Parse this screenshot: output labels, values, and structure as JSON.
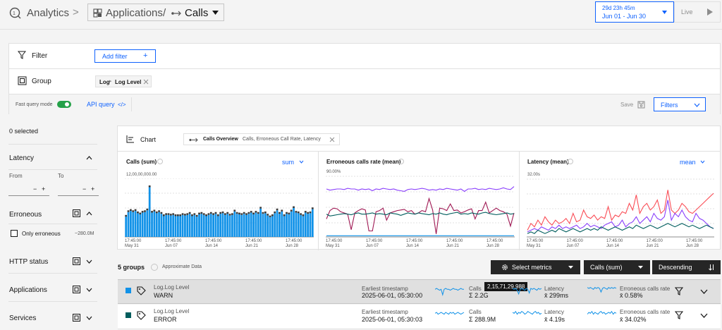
{
  "header": {
    "analytics_label": "Analytics",
    "crumb_sep": ">",
    "applications_label": "Applications",
    "slash": "/",
    "calls_label": "Calls",
    "date_duration": "29d 23h 45m",
    "date_range": "Jun 01 - Jun 30",
    "live_label": "Live"
  },
  "filter_panel": {
    "filter_label": "Filter",
    "add_filter_label": "Add filter",
    "add_filter_plus": "+",
    "group_label": "Group",
    "group_tag_part1": "Log",
    "group_tag_part2": "Log Level",
    "fast_query_label": "Fast query mode",
    "api_query_label": "API query",
    "api_query_icon": "</>",
    "save_label": "Save",
    "filters_label": "Filters"
  },
  "sidebar": {
    "selected_count": "0 selected",
    "latency_label": "Latency",
    "from_label": "From",
    "to_label": "To",
    "from_minus": "−",
    "from_plus": "+",
    "to_minus": "−",
    "to_plus": "+",
    "erroneous_label": "Erroneous",
    "only_erroneous_label": "Only erroneous",
    "only_erroneous_count": "~280.0M",
    "http_status_label": "HTTP status",
    "applications_label": "Applications",
    "services_label": "Services"
  },
  "chart_bar": {
    "chart_label": "Chart",
    "overview_title": "Calls Overview",
    "overview_sub": "Calls, Erroneous Call Rate, Latency"
  },
  "charts": {
    "calls": {
      "title": "Calls (sum)",
      "agg": "sum",
      "ymax_label": "12,00,00,000.00"
    },
    "err": {
      "title": "Erroneous calls rate (mean)",
      "ymax_label": "90.00%"
    },
    "lat": {
      "title": "Latency (mean)",
      "agg": "mean",
      "ymax_label": "32.00s"
    },
    "x_ticks": [
      {
        "time": "17:45:00",
        "date": "May 31"
      },
      {
        "time": "17:45:00",
        "date": "Jun 07"
      },
      {
        "time": "17:45:00",
        "date": "Jun 14"
      },
      {
        "time": "17:45:00",
        "date": "Jun 21"
      },
      {
        "time": "17:45:00",
        "date": "Jun 28"
      }
    ]
  },
  "chart_data": [
    {
      "type": "bar",
      "title": "Calls (sum)",
      "ylim": [
        0,
        120000000
      ],
      "ymax_label": "12,00,00,000.00",
      "x_ticks": [
        "17:45:00 May 31",
        "17:45:00 Jun 07",
        "17:45:00 Jun 14",
        "17:45:00 Jun 21",
        "17:45:00 Jun 28"
      ],
      "series": [
        {
          "color": "#1192e8",
          "values": [
            35,
            43,
            45,
            43,
            45,
            41,
            39,
            42,
            43,
            46,
            86,
            42,
            44,
            41,
            43,
            40,
            36,
            38,
            38,
            37,
            38,
            36,
            36,
            36,
            38,
            37,
            38,
            40,
            36,
            38,
            35,
            39,
            40,
            38,
            36,
            38,
            40,
            38,
            40,
            36,
            40,
            41,
            38,
            40,
            37,
            38,
            44,
            40,
            39,
            38,
            40,
            38,
            40,
            42,
            39,
            42,
            40,
            49,
            40,
            41,
            37,
            34,
            36,
            41,
            46,
            40,
            44,
            36,
            40,
            39,
            44,
            50,
            42,
            41,
            38,
            36,
            42,
            40,
            41,
            48
          ]
        },
        {
          "color": "#002d9c",
          "values": [
            6,
            6,
            6,
            6,
            6,
            6,
            6,
            6,
            6,
            6,
            6,
            6,
            6,
            6,
            6,
            6,
            6,
            6,
            6,
            6,
            6,
            6,
            6,
            6,
            6,
            6,
            6,
            6,
            6,
            6,
            6,
            6,
            6,
            6,
            6,
            6,
            6,
            6,
            6,
            6,
            6,
            6,
            6,
            6,
            6,
            6,
            6,
            6,
            6,
            6,
            6,
            6,
            6,
            6,
            6,
            6,
            6,
            6,
            6,
            6,
            6,
            6,
            6,
            6,
            6,
            6,
            6,
            6,
            6,
            6,
            6,
            6,
            6,
            6,
            6,
            6,
            6,
            6,
            6,
            6
          ]
        }
      ]
    },
    {
      "type": "line",
      "title": "Erroneous calls rate (mean)",
      "ylim": [
        0,
        100
      ],
      "ymax_label": "90.00%",
      "series": [
        {
          "color": "#8a3ffc",
          "values": [
            80,
            78,
            79,
            80,
            80,
            79,
            81,
            80,
            80,
            78,
            80,
            79,
            80,
            77,
            80,
            79,
            81,
            80,
            79,
            80,
            78,
            77,
            76,
            79,
            80,
            79,
            80,
            81,
            80,
            78,
            79,
            78,
            80,
            79,
            81,
            80,
            79,
            78,
            80,
            76,
            80,
            80,
            81,
            79,
            80,
            79,
            81,
            80,
            79,
            80,
            82,
            80,
            79,
            84
          ]
        },
        {
          "color": "#9f1853",
          "values": [
            30,
            44,
            48,
            47,
            42,
            40,
            38,
            12,
            40,
            44,
            47,
            45,
            10,
            10,
            42,
            44,
            48,
            28,
            40,
            42,
            44,
            45,
            46,
            42,
            44,
            38,
            40,
            44,
            42,
            64,
            45,
            5,
            48,
            47,
            44,
            55,
            44,
            45,
            40,
            42,
            45,
            47,
            30,
            44,
            44,
            58,
            40,
            44,
            48,
            44,
            42,
            38,
            18,
            40
          ]
        },
        {
          "color": "#005d5d",
          "values": [
            38,
            35,
            36,
            37,
            38,
            39,
            38,
            37,
            39,
            40,
            38,
            38,
            39,
            40,
            38,
            39,
            38,
            37,
            40,
            39,
            38,
            36,
            38,
            40,
            39,
            38,
            40,
            39,
            38,
            37,
            39,
            38,
            40,
            38,
            37,
            39,
            40,
            41,
            38,
            39,
            38,
            40,
            39,
            38,
            40,
            41,
            39,
            38,
            37,
            38,
            39,
            40,
            38,
            39
          ]
        },
        {
          "color": "#1192e8",
          "values": [
            2,
            2,
            2,
            2,
            2,
            2,
            2,
            2,
            2,
            2,
            2,
            2,
            2,
            2,
            2,
            2,
            2,
            2,
            2,
            2,
            2,
            2,
            2,
            2,
            2,
            2,
            2,
            2,
            2,
            2,
            2,
            2,
            2,
            2,
            2,
            2,
            2,
            2,
            2,
            2,
            2,
            2,
            2,
            2,
            2,
            2,
            2,
            2,
            2,
            2,
            2,
            2,
            2,
            2
          ]
        }
      ]
    },
    {
      "type": "line",
      "title": "Latency (mean)",
      "ylim": [
        0,
        34
      ],
      "ymax_label": "32.00s",
      "series": [
        {
          "color": "#fa4d56",
          "values": [
            4,
            8,
            6,
            10,
            7,
            12,
            9,
            7,
            10,
            8,
            9,
            11,
            8,
            14,
            9,
            10,
            16,
            12,
            11,
            13,
            10,
            12,
            11,
            18,
            10,
            13,
            12,
            15,
            14,
            20,
            16,
            25,
            14,
            18,
            20,
            16,
            18,
            22,
            14,
            16,
            28,
            16,
            14,
            16,
            20,
            18,
            15,
            14,
            16,
            18,
            20,
            22,
            24,
            26
          ]
        },
        {
          "color": "#8a3ffc",
          "values": [
            3,
            4,
            5,
            4,
            6,
            5,
            4,
            6,
            5,
            7,
            5,
            6,
            5,
            6,
            7,
            5,
            6,
            8,
            6,
            7,
            6,
            5,
            7,
            8,
            9,
            6,
            7,
            10,
            6,
            8,
            9,
            12,
            8,
            10,
            12,
            9,
            14,
            11,
            10,
            12,
            22,
            10,
            14,
            12,
            16,
            12,
            10,
            9,
            14,
            11,
            10,
            8,
            6,
            5
          ]
        },
        {
          "color": "#005d5d",
          "values": [
            2,
            3,
            2,
            4,
            3,
            2,
            3,
            4,
            3,
            5,
            4,
            3,
            4,
            5,
            4,
            3,
            4,
            5,
            4,
            5,
            4,
            6,
            5,
            4,
            5,
            6,
            5,
            4,
            5,
            6,
            5,
            7,
            6,
            5,
            6,
            7,
            6,
            5,
            6,
            7,
            8,
            7,
            6,
            7,
            8,
            7,
            6,
            7,
            6,
            5,
            6,
            7,
            6,
            5
          ]
        }
      ]
    }
  ],
  "groups_bar": {
    "count_label": "5 groups",
    "approx_label": "Approximate Data",
    "select_metrics_label": "Select metrics",
    "sort_metric_label": "Calls (sum)",
    "order_label": "Descending"
  },
  "rows": [
    {
      "group_key": "Log.Log Level",
      "group_value": "WARN",
      "color": "#1192e8",
      "ts_label": "Earliest timestamp",
      "ts_value": "2025-06-01, 05:30:00",
      "calls_label": "Calls",
      "calls_value": "Σ 2.2G",
      "tooltip": "2,15,71,29,988",
      "latency_label": "Latency",
      "latency_value": "x̄ 299ms",
      "err_label": "Erroneous calls rate",
      "err_value": "x̄ 0.58%"
    },
    {
      "group_key": "Log.Log Level",
      "group_value": "ERROR",
      "color": "#005d5d",
      "ts_label": "Earliest timestamp",
      "ts_value": "2025-06-01, 05:30:03",
      "calls_label": "Calls",
      "calls_value": "Σ 288.9M",
      "latency_label": "Latency",
      "latency_value": "x̄ 4.19s",
      "err_label": "Erroneous calls rate",
      "err_value": "x̄ 34.02%"
    }
  ]
}
